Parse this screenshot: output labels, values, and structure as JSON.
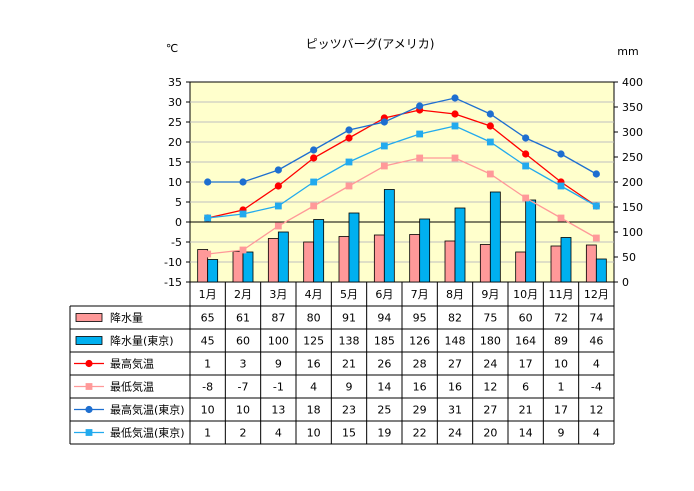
{
  "chart_data": {
    "type": "bar-line-combo",
    "title": "ピッツバーグ(アメリカ)",
    "left_unit": "℃",
    "right_unit": "mm",
    "ylim_left": [
      -15,
      35
    ],
    "ylim_right": [
      0,
      400
    ],
    "left_ticks": [
      35,
      30,
      25,
      20,
      15,
      10,
      5,
      0,
      -5,
      -10,
      -15
    ],
    "right_ticks": [
      400,
      350,
      300,
      250,
      200,
      150,
      100,
      50,
      0
    ],
    "categories": [
      "1月",
      "2月",
      "3月",
      "4月",
      "5月",
      "6月",
      "7月",
      "8月",
      "9月",
      "10月",
      "11月",
      "12月"
    ],
    "series": [
      {
        "name": "降水量",
        "kind": "bar",
        "axis": "right",
        "color": "#ff9999",
        "values": [
          65,
          61,
          87,
          80,
          91,
          94,
          95,
          82,
          75,
          60,
          72,
          74
        ]
      },
      {
        "name": "降水量(東京)",
        "kind": "bar",
        "axis": "right",
        "color": "#00b0f0",
        "values": [
          45,
          60,
          100,
          125,
          138,
          185,
          126,
          148,
          180,
          164,
          89,
          46
        ]
      },
      {
        "name": "最高気温",
        "kind": "line",
        "marker": "circle",
        "axis": "left",
        "color": "#ff0000",
        "values": [
          1,
          3,
          9,
          16,
          21,
          26,
          28,
          27,
          24,
          17,
          10,
          4
        ]
      },
      {
        "name": "最低気温",
        "kind": "line",
        "marker": "square",
        "axis": "left",
        "color": "#ff9999",
        "values": [
          -8,
          -7,
          -1,
          4,
          9,
          14,
          16,
          16,
          12,
          6,
          1,
          -4
        ]
      },
      {
        "name": "最高気温(東京)",
        "kind": "line",
        "marker": "circle",
        "axis": "left",
        "color": "#1e6fd0",
        "values": [
          10,
          10,
          13,
          18,
          23,
          25,
          29,
          31,
          27,
          21,
          17,
          12
        ]
      },
      {
        "name": "最低気温(東京)",
        "kind": "line",
        "marker": "square",
        "axis": "left",
        "color": "#22aaee",
        "values": [
          1,
          2,
          4,
          10,
          15,
          19,
          22,
          24,
          20,
          14,
          9,
          4
        ]
      }
    ],
    "table": true,
    "legend": "table-left"
  }
}
